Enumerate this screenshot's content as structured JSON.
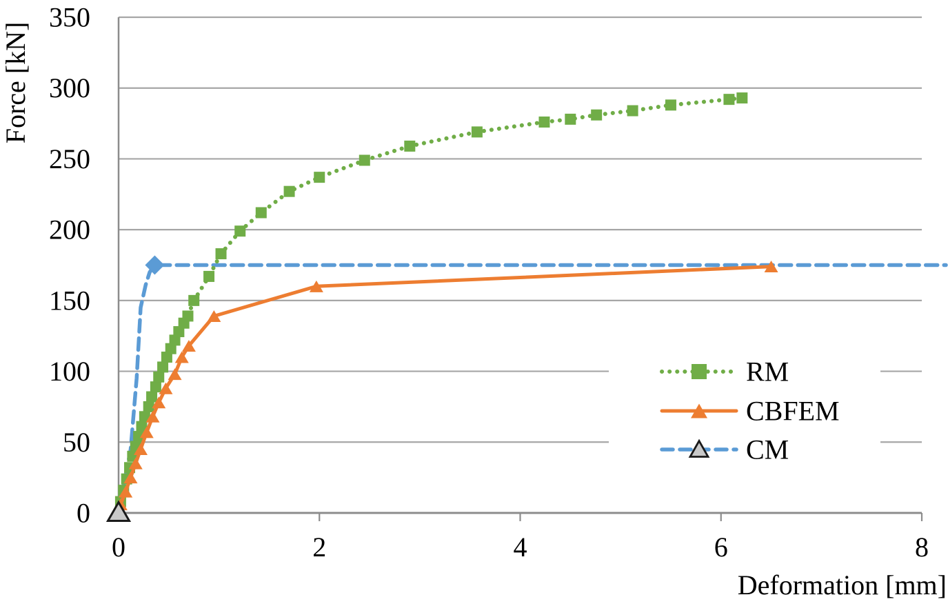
{
  "chart_data": {
    "type": "line",
    "title": "",
    "xlabel": "Deformation [mm]",
    "ylabel": "Force [kN]",
    "xlim": [
      0,
      8
    ],
    "ylim": [
      0,
      350
    ],
    "xticks": [
      0,
      2,
      4,
      6,
      8
    ],
    "yticks": [
      0,
      50,
      100,
      150,
      200,
      250,
      300,
      350
    ],
    "grid": "horizontal",
    "grid_color": "#A6A6A6",
    "axis_color": "#8C8C8C",
    "text_color": "#000000",
    "legend_position": "middle-right",
    "legend": {
      "items": [
        "RM",
        "CBFEM",
        "CM"
      ]
    },
    "series": [
      {
        "name": "RM",
        "color": "#70AD47",
        "line_style": "dotted",
        "marker": "square",
        "points": [
          [
            0.02,
            8
          ],
          [
            0.05,
            16
          ],
          [
            0.08,
            24
          ],
          [
            0.11,
            32
          ],
          [
            0.14,
            40
          ],
          [
            0.17,
            47
          ],
          [
            0.2,
            54
          ],
          [
            0.23,
            61
          ],
          [
            0.26,
            68
          ],
          [
            0.3,
            75
          ],
          [
            0.33,
            82
          ],
          [
            0.37,
            89
          ],
          [
            0.4,
            96
          ],
          [
            0.44,
            103
          ],
          [
            0.48,
            110
          ],
          [
            0.52,
            116
          ],
          [
            0.56,
            122
          ],
          [
            0.6,
            128
          ],
          [
            0.65,
            134
          ],
          [
            0.69,
            139
          ],
          [
            0.75,
            150
          ],
          [
            0.9,
            167
          ],
          [
            1.02,
            183
          ],
          [
            1.21,
            199
          ],
          [
            1.42,
            212
          ],
          [
            1.7,
            227
          ],
          [
            2.0,
            237
          ],
          [
            2.45,
            249
          ],
          [
            2.9,
            259
          ],
          [
            3.57,
            269
          ],
          [
            4.24,
            276
          ],
          [
            4.5,
            278
          ],
          [
            4.76,
            281
          ],
          [
            5.12,
            284
          ],
          [
            5.5,
            288
          ],
          [
            6.08,
            292
          ],
          [
            6.21,
            293
          ]
        ]
      },
      {
        "name": "CBFEM",
        "color": "#ED7D31",
        "line_style": "solid",
        "marker": "triangle",
        "points": [
          [
            0.02,
            6
          ],
          [
            0.07,
            15
          ],
          [
            0.12,
            25
          ],
          [
            0.17,
            35
          ],
          [
            0.22,
            45
          ],
          [
            0.28,
            57
          ],
          [
            0.34,
            68
          ],
          [
            0.4,
            78
          ],
          [
            0.47,
            88
          ],
          [
            0.56,
            98
          ],
          [
            0.63,
            110
          ],
          [
            0.7,
            118
          ],
          [
            0.95,
            139
          ],
          [
            1.97,
            160
          ],
          [
            6.5,
            174
          ]
        ]
      },
      {
        "name": "CM",
        "color": "#5B9BD5",
        "line_style": "dashed",
        "marker": "none",
        "points": [
          [
            0,
            0
          ],
          [
            0.12,
            45
          ],
          [
            0.18,
            95
          ],
          [
            0.22,
            145
          ],
          [
            0.27,
            161
          ],
          [
            0.31,
            170
          ],
          [
            0.36,
            175
          ],
          [
            8.24,
            175
          ]
        ],
        "special_markers": [
          {
            "shape": "triangle",
            "x": 0,
            "y": 0,
            "fill": "#C9C9C9",
            "stroke": "#1A1A1A"
          },
          {
            "shape": "diamond",
            "x": 0.36,
            "y": 175,
            "fill": "#5B9BD5"
          }
        ],
        "legend_marker": {
          "shape": "triangle",
          "fill": "#C9C9C9",
          "stroke": "#1A1A1A"
        }
      }
    ]
  }
}
